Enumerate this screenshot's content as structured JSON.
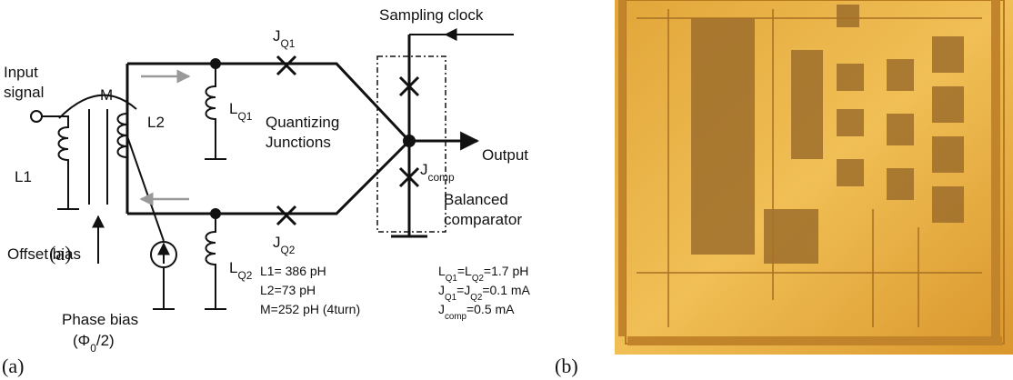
{
  "figure": {
    "panel_a_label": "(a)",
    "panel_b_label": "(b)",
    "schematic": {
      "sampling_clock": [
        {
          "t": "Sampling clock"
        }
      ],
      "jq1": [
        {
          "t": "J"
        },
        {
          "t": "Q1",
          "sub": true
        }
      ],
      "input_1": [
        {
          "t": "Input"
        }
      ],
      "input_2": [
        {
          "t": "signal"
        }
      ],
      "m": [
        {
          "t": "M"
        }
      ],
      "l2": [
        {
          "t": "L2"
        }
      ],
      "l1": [
        {
          "t": "L1"
        }
      ],
      "lq1": [
        {
          "t": "L"
        },
        {
          "t": "Q1",
          "sub": true
        }
      ],
      "quantizing_1": [
        {
          "t": "Quantizing"
        }
      ],
      "quantizing_2": [
        {
          "t": "Junctions"
        }
      ],
      "output": [
        {
          "t": "Output"
        }
      ],
      "jcomp": [
        {
          "t": "J"
        },
        {
          "t": "comp",
          "sub": true
        }
      ],
      "balanced_1": [
        {
          "t": "Balanced"
        }
      ],
      "balanced_2": [
        {
          "t": "comparator"
        }
      ],
      "jq2": [
        {
          "t": "J"
        },
        {
          "t": "Q2",
          "sub": true
        }
      ],
      "offset_bias": [
        {
          "t": "Offset bias"
        }
      ],
      "inner_a": [
        {
          "t": "(a)"
        }
      ],
      "lq2": [
        {
          "t": "L"
        },
        {
          "t": "Q2",
          "sub": true
        }
      ],
      "phase_bias": [
        {
          "t": "Phase bias"
        }
      ],
      "phi": [
        {
          "t": "(Φ"
        },
        {
          "t": "0",
          "sub": true
        },
        {
          "t": "/2)"
        }
      ],
      "param_l1": [
        {
          "t": "L1= 386 pH"
        }
      ],
      "param_l2": [
        {
          "t": "L2=73 pH"
        }
      ],
      "param_m": [
        {
          "t": "M=252 pH (4turn)"
        }
      ],
      "param_lq": [
        {
          "t": "L"
        },
        {
          "t": "Q1",
          "sub": true
        },
        {
          "t": "=L"
        },
        {
          "t": "Q2",
          "sub": true
        },
        {
          "t": "=1.7 pH"
        }
      ],
      "param_jq": [
        {
          "t": "J"
        },
        {
          "t": "Q1",
          "sub": true
        },
        {
          "t": "=J"
        },
        {
          "t": "Q2",
          "sub": true
        },
        {
          "t": "=0.1 mA"
        }
      ],
      "param_jcomp": [
        {
          "t": "J"
        },
        {
          "t": "comp",
          "sub": true
        },
        {
          "t": "=0.5 mA"
        }
      ]
    }
  }
}
